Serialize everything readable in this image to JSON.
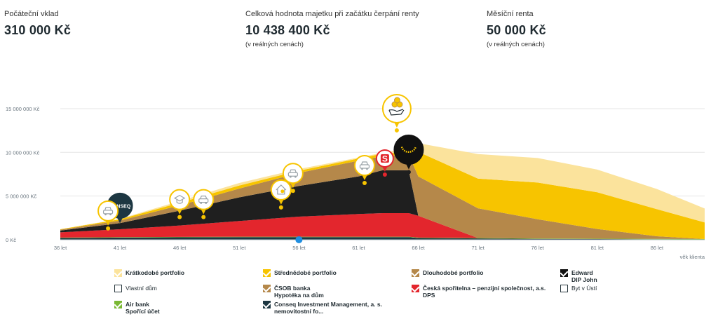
{
  "stats": {
    "initial_deposit_label": "Počáteční vklad",
    "initial_deposit_value": "310 000 Kč",
    "total_value_label": "Celková hodnota majetku při začátku čerpání renty",
    "total_value_value": "10 438 400 Kč",
    "total_value_note": "(v reálných cenách)",
    "monthly_rent_label": "Měsíční renta",
    "monthly_rent_value": "50 000 Kč",
    "monthly_rent_note": "(v reálných cenách)"
  },
  "chart_data": {
    "type": "area",
    "stacked": true,
    "x": [
      36,
      41,
      46,
      51,
      56,
      61,
      63,
      65.2,
      66,
      71,
      76,
      81,
      86,
      90
    ],
    "xticks": [
      "36 let",
      "41 let",
      "46 let",
      "51 let",
      "56 let",
      "61 let",
      "66 let",
      "71 let",
      "76 let",
      "81 let",
      "86 let"
    ],
    "xtick_values": [
      36,
      41,
      46,
      51,
      56,
      61,
      66,
      71,
      76,
      81,
      86
    ],
    "xlabel": "věk klienta",
    "yticks": [
      "0 Kč",
      "5 000 000 Kč",
      "10 000 000 Kč",
      "15 000 000 Kč"
    ],
    "ytick_values": [
      0,
      5000000,
      10000000,
      15000000
    ],
    "ylim": [
      0,
      17000000
    ],
    "xlim": [
      36,
      90
    ],
    "grid": true,
    "legend_position": "bottom",
    "series": [
      {
        "name": "Conseq Investment Management, a. s. nemovitostní fo...",
        "color": "#1d3742",
        "values": [
          200000,
          250000,
          280000,
          300000,
          300000,
          300000,
          300000,
          300000,
          200000,
          150000,
          100000,
          80000,
          50000,
          30000
        ]
      },
      {
        "name": "Air bank Spořící účet",
        "color": "#7ab833",
        "values": [
          50000,
          50000,
          50000,
          50000,
          50000,
          50000,
          50000,
          50000,
          50000,
          50000,
          50000,
          50000,
          50000,
          50000
        ]
      },
      {
        "name": "Česká spořitelna – penzijní společnost, a.s. DPS",
        "color": "#e3262d",
        "values": [
          600000,
          900000,
          1300000,
          1800000,
          2300000,
          2600000,
          2700000,
          2700000,
          2500000,
          0,
          0,
          0,
          0,
          0
        ]
      },
      {
        "name": "Edward DIP John",
        "color": "#1f1f1f",
        "values": [
          200000,
          700000,
          1700000,
          2700000,
          3500000,
          4300000,
          4900000,
          4900000,
          0,
          0,
          0,
          0,
          0,
          0
        ]
      },
      {
        "name": "Dlouhodobé portfolio",
        "color": "#b5884a",
        "values": [
          100000,
          300000,
          600000,
          1000000,
          1500000,
          1800000,
          1600000,
          1800000,
          4500000,
          3400000,
          2200000,
          1100000,
          300000,
          0
        ]
      },
      {
        "name": "Střednědobé portfolio",
        "color": "#f7c400",
        "values": [
          50000,
          150000,
          300000,
          350000,
          250000,
          250000,
          300000,
          300000,
          2800000,
          3400000,
          4200000,
          4200000,
          3100000,
          1900000
        ]
      },
      {
        "name": "Krátkodobé portfolio",
        "color": "#fbe39c",
        "values": [
          0,
          50000,
          200000,
          300000,
          200000,
          100000,
          100000,
          400000,
          1000000,
          2800000,
          2800000,
          2600000,
          2300000,
          1600000
        ]
      }
    ],
    "markers": [
      {
        "x": 41,
        "y_value": 3900000,
        "label": "CONSEQ",
        "style": "logo-dark",
        "size": 18
      },
      {
        "x": 40,
        "y_value": 3300000,
        "icon": "car-icon",
        "style": "event",
        "size": 14
      },
      {
        "x": 46,
        "y_value": 4600000,
        "icon": "graduation-cap-icon",
        "style": "event",
        "size": 14
      },
      {
        "x": 48,
        "y_value": 4600000,
        "icon": "car-icon",
        "style": "event",
        "size": 14
      },
      {
        "x": 54.5,
        "y_value": 5700000,
        "icon": "house-icon",
        "style": "event",
        "size": 14
      },
      {
        "x": 55.5,
        "y_value": 7600000,
        "icon": "car-icon",
        "style": "event",
        "size": 14
      },
      {
        "x": 61.5,
        "y_value": 8500000,
        "icon": "car-icon",
        "style": "event",
        "size": 14
      },
      {
        "x": 63.2,
        "y_value": 9300000,
        "icon": "bank-s-icon",
        "style": "bank-red",
        "size": 12
      },
      {
        "x": 64.2,
        "y_value": 15000000,
        "icon": "coins-hand-icon",
        "style": "event-big",
        "size": 20
      },
      {
        "x": 65.2,
        "y_value": 10300000,
        "icon": "smile-icon",
        "style": "logo-black",
        "size": 21
      }
    ],
    "current_age_marker": {
      "x": 56
    }
  },
  "legend": [
    {
      "label": "Krátkodobé portfolio",
      "color": "#fbe39c",
      "checked": true
    },
    {
      "label": "Střednědobé portfolio",
      "color": "#f7c400",
      "checked": true
    },
    {
      "label": "Dlouhodobé portfolio",
      "color": "#b5884a",
      "checked": true
    },
    {
      "label": "Edward\nDIP John",
      "color": "#111111",
      "checked": true
    },
    {
      "label": "Vlastní dům",
      "color": "",
      "checked": false
    },
    {
      "label": "ČSOB banka\nHypotéka na dům",
      "color": "#b5884a",
      "checked": true
    },
    {
      "label": "Česká spořitelna – penzijní společnost, a.s.\nDPS",
      "color": "#e3262d",
      "checked": true
    },
    {
      "label": "Byt v Ústí",
      "color": "",
      "checked": false
    },
    {
      "label": "Air bank\nSpořící účet",
      "color": "#7ab833",
      "checked": true
    },
    {
      "label": "Conseq Investment Management, a. s.\nnemovitostní fo...",
      "color": "#1d3742",
      "checked": true
    }
  ]
}
